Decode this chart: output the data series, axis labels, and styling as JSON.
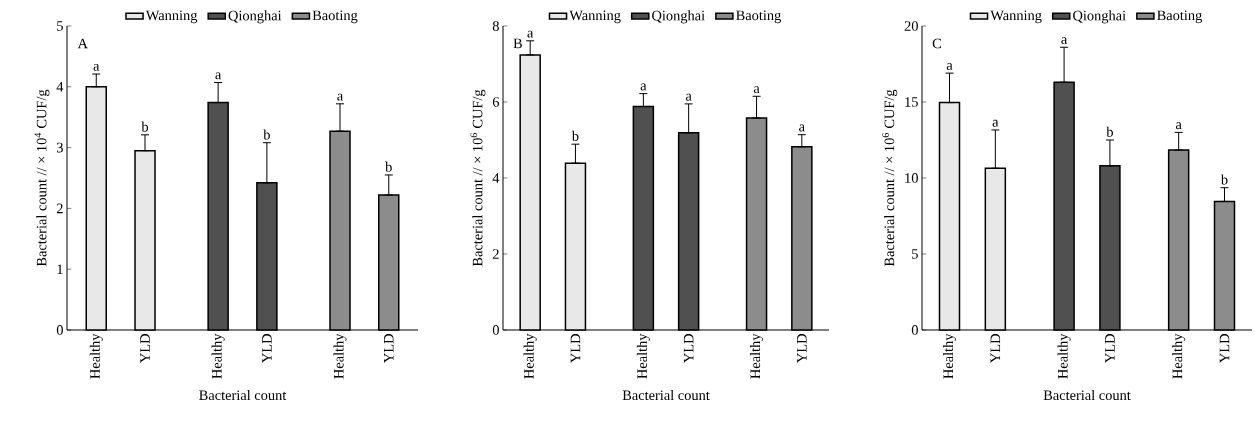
{
  "chart_data": [
    {
      "type": "bar",
      "categories": [
        "Healthy",
        "YLD",
        "Healthy",
        "YLD",
        "Healthy",
        "YLD"
      ],
      "xlabel": "Bacterial count",
      "ylabel": "Bacterial count // × 10$^{4}$ CUF/g",
      "ylim": [
        0,
        5
      ],
      "yticks": [
        0,
        1,
        2,
        3,
        4,
        5
      ],
      "legend": "top",
      "annotations": [
        "A"
      ],
      "series": [
        {
          "name": "Wanning",
          "color": "#e8e8e8",
          "values": [
            4.0,
            2.95,
            null,
            null,
            null,
            null
          ],
          "errors": [
            [
              4.0,
              4.21
            ],
            [
              2.95,
              3.21
            ],
            null,
            null,
            null,
            null
          ],
          "value_labels": [
            "a",
            "b",
            null,
            null,
            null,
            null
          ]
        },
        {
          "name": "Qionghai",
          "color": "#505050",
          "values": [
            null,
            null,
            3.74,
            2.42,
            null,
            null
          ],
          "errors": [
            null,
            null,
            [
              3.74,
              4.07
            ],
            [
              2.42,
              3.08
            ],
            null,
            null
          ],
          "value_labels": [
            null,
            null,
            "a",
            "b",
            null,
            null
          ]
        },
        {
          "name": "Baoting",
          "color": "#8c8c8c",
          "values": [
            null,
            null,
            null,
            null,
            3.27,
            2.22
          ],
          "errors": [
            null,
            null,
            null,
            null,
            [
              3.27,
              3.72
            ],
            [
              2.22,
              2.55
            ]
          ],
          "value_labels": [
            null,
            null,
            null,
            null,
            "a",
            "b"
          ]
        }
      ]
    },
    {
      "type": "bar",
      "categories": [
        "Healthy",
        "YLD",
        "Healthy",
        "YLD",
        "Healthy",
        "YLD"
      ],
      "xlabel": "Bacterial count",
      "ylabel": "Bacterial count // × 10$^{6}$ CUF/g",
      "ylim": [
        0,
        8
      ],
      "yticks": [
        0,
        2,
        4,
        6,
        8
      ],
      "legend": "top",
      "annotations": [
        "B"
      ],
      "series": [
        {
          "name": "Wanning",
          "color": "#e8e8e8",
          "values": [
            7.24,
            4.39,
            null,
            null,
            null,
            null
          ],
          "errors": [
            [
              7.24,
              7.61
            ],
            [
              4.39,
              4.89
            ],
            null,
            null,
            null,
            null
          ],
          "value_labels": [
            "a",
            "b",
            null,
            null,
            null,
            null
          ]
        },
        {
          "name": "Qionghai",
          "color": "#505050",
          "values": [
            null,
            null,
            5.88,
            5.19,
            null,
            null
          ],
          "errors": [
            null,
            null,
            [
              5.88,
              6.22
            ],
            [
              5.19,
              5.95
            ],
            null,
            null
          ],
          "value_labels": [
            null,
            null,
            "a",
            "a",
            null,
            null
          ]
        },
        {
          "name": "Baoting",
          "color": "#8c8c8c",
          "values": [
            null,
            null,
            null,
            null,
            5.58,
            4.82
          ],
          "errors": [
            null,
            null,
            null,
            null,
            [
              5.58,
              6.15
            ],
            [
              4.82,
              5.14
            ]
          ],
          "value_labels": [
            null,
            null,
            null,
            null,
            "a",
            "a"
          ]
        }
      ]
    },
    {
      "type": "bar",
      "categories": [
        "Healthy",
        "YLD",
        "Healthy",
        "YLD",
        "Healthy",
        "YLD"
      ],
      "xlabel": "Bacterial count",
      "ylabel": "Bacterial count // × 10$^{6}$ CUF/g",
      "ylim": [
        0,
        20
      ],
      "yticks": [
        0,
        5,
        10,
        15,
        20
      ],
      "legend": "top",
      "annotations": [
        "C"
      ],
      "series": [
        {
          "name": "Wanning",
          "color": "#e8e8e8",
          "values": [
            14.96,
            10.64,
            null,
            null,
            null,
            null
          ],
          "errors": [
            [
              14.96,
              16.9
            ],
            [
              10.64,
              13.16
            ],
            null,
            null,
            null,
            null
          ],
          "value_labels": [
            "a",
            "a",
            null,
            null,
            null,
            null
          ]
        },
        {
          "name": "Qionghai",
          "color": "#505050",
          "values": [
            null,
            null,
            16.3,
            10.8,
            null,
            null
          ],
          "errors": [
            null,
            null,
            [
              16.3,
              18.6
            ],
            [
              10.8,
              12.5
            ],
            null,
            null
          ],
          "value_labels": [
            null,
            null,
            "a",
            "b",
            null,
            null
          ]
        },
        {
          "name": "Baoting",
          "color": "#8c8c8c",
          "values": [
            null,
            null,
            null,
            null,
            11.84,
            8.46
          ],
          "errors": [
            null,
            null,
            null,
            null,
            [
              11.84,
              13.0
            ],
            [
              8.46,
              9.36
            ]
          ],
          "value_labels": [
            null,
            null,
            null,
            null,
            "a",
            "b"
          ]
        }
      ]
    }
  ]
}
